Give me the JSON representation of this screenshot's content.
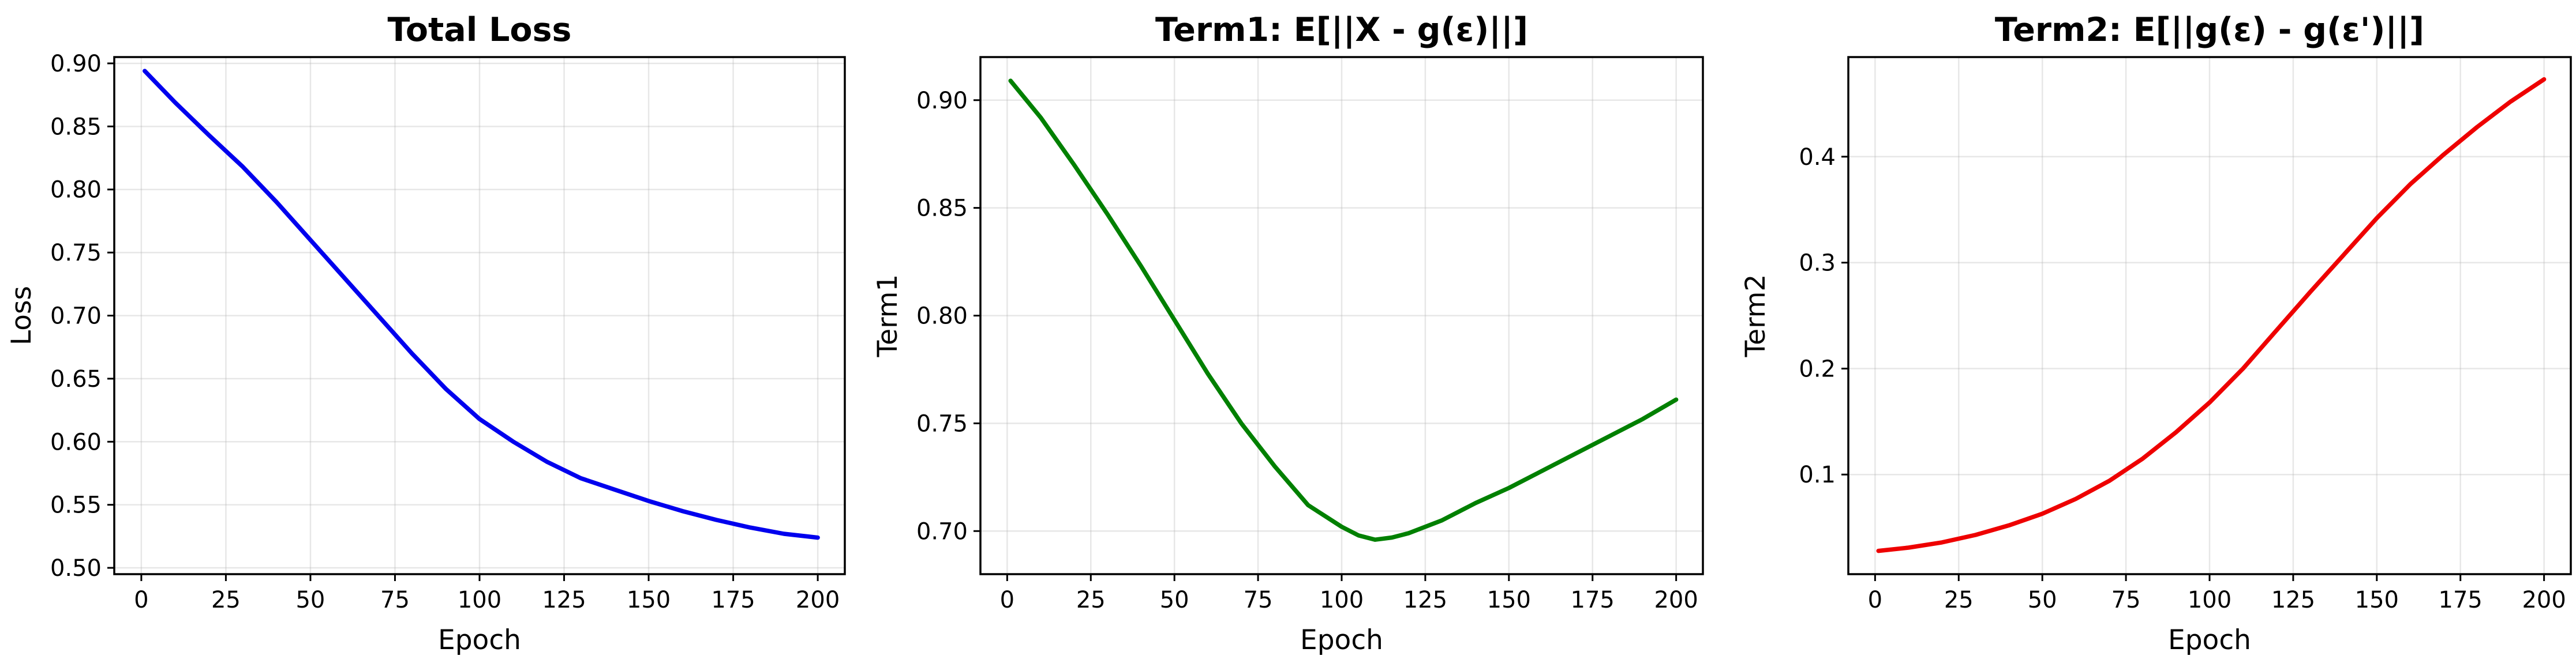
{
  "chart_data": [
    {
      "type": "line",
      "title": "Total Loss",
      "xlabel": "Epoch",
      "ylabel": "Loss",
      "xlim": [
        -8,
        208
      ],
      "ylim": [
        0.495,
        0.905
      ],
      "xticks": [
        0,
        25,
        50,
        75,
        100,
        125,
        150,
        175,
        200
      ],
      "yticks": [
        0.5,
        0.55,
        0.6,
        0.65,
        0.7,
        0.75,
        0.8,
        0.85,
        0.9
      ],
      "ytick_labels": [
        "0.50",
        "0.55",
        "0.60",
        "0.65",
        "0.70",
        "0.75",
        "0.80",
        "0.85",
        "0.90"
      ],
      "grid": true,
      "series": [
        {
          "color": "#0000ee",
          "x": [
            1,
            10,
            20,
            30,
            40,
            50,
            60,
            70,
            80,
            90,
            100,
            110,
            120,
            130,
            140,
            150,
            160,
            170,
            180,
            190,
            200
          ],
          "y": [
            0.894,
            0.869,
            0.843,
            0.818,
            0.79,
            0.76,
            0.73,
            0.7,
            0.67,
            0.642,
            0.618,
            0.6,
            0.584,
            0.571,
            0.562,
            0.553,
            0.545,
            0.538,
            0.532,
            0.527,
            0.524
          ]
        }
      ]
    },
    {
      "type": "line",
      "title": "Term1: E[||X - g(ε)||]",
      "xlabel": "Epoch",
      "ylabel": "Term1",
      "xlim": [
        -8,
        208
      ],
      "ylim": [
        0.68,
        0.92
      ],
      "xticks": [
        0,
        25,
        50,
        75,
        100,
        125,
        150,
        175,
        200
      ],
      "yticks": [
        0.7,
        0.75,
        0.8,
        0.85,
        0.9
      ],
      "ytick_labels": [
        "0.70",
        "0.75",
        "0.80",
        "0.85",
        "0.90"
      ],
      "grid": true,
      "series": [
        {
          "color": "#008000",
          "x": [
            1,
            10,
            20,
            30,
            40,
            50,
            60,
            70,
            80,
            90,
            100,
            105,
            110,
            115,
            120,
            130,
            140,
            150,
            160,
            170,
            180,
            190,
            200
          ],
          "y": [
            0.909,
            0.892,
            0.87,
            0.847,
            0.823,
            0.798,
            0.773,
            0.75,
            0.73,
            0.712,
            0.702,
            0.698,
            0.696,
            0.697,
            0.699,
            0.705,
            0.713,
            0.72,
            0.728,
            0.736,
            0.744,
            0.752,
            0.761
          ]
        }
      ]
    },
    {
      "type": "line",
      "title": "Term2: E[||g(ε) - g(ε')||]",
      "xlabel": "Epoch",
      "ylabel": "Term2",
      "xlim": [
        -8,
        208
      ],
      "ylim": [
        0.006,
        0.494
      ],
      "xticks": [
        0,
        25,
        50,
        75,
        100,
        125,
        150,
        175,
        200
      ],
      "yticks": [
        0.1,
        0.2,
        0.3,
        0.4
      ],
      "ytick_labels": [
        "0.1",
        "0.2",
        "0.3",
        "0.4"
      ],
      "grid": true,
      "series": [
        {
          "color": "#ee0000",
          "x": [
            1,
            10,
            20,
            30,
            40,
            50,
            60,
            70,
            80,
            90,
            100,
            110,
            120,
            130,
            140,
            150,
            160,
            170,
            180,
            190,
            200
          ],
          "y": [
            0.028,
            0.031,
            0.036,
            0.043,
            0.052,
            0.063,
            0.077,
            0.094,
            0.115,
            0.14,
            0.168,
            0.2,
            0.236,
            0.272,
            0.307,
            0.342,
            0.374,
            0.402,
            0.428,
            0.452,
            0.473
          ]
        }
      ]
    }
  ]
}
